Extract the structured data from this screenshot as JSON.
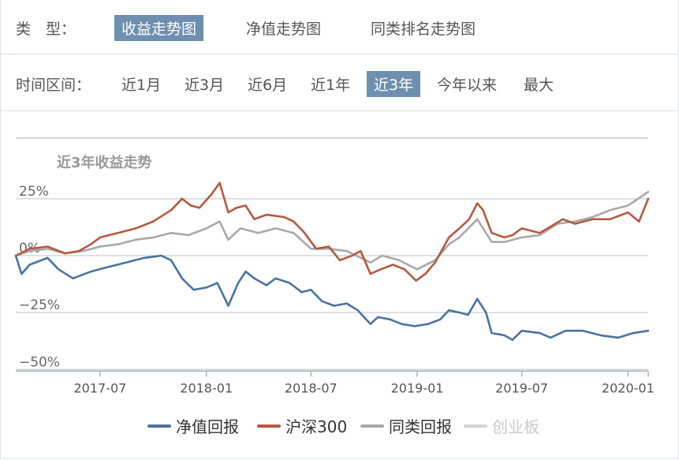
{
  "type_row": {
    "label": "类　型：",
    "options": [
      "收益走势图",
      "净值走势图",
      "同类排名走势图"
    ],
    "active": 0
  },
  "range_row": {
    "label": "时间区间：",
    "options": [
      "近1月",
      "近3月",
      "近6月",
      "近1年",
      "近3年",
      "今年以来",
      "最大"
    ],
    "active": 4
  },
  "chart_data": {
    "type": "line",
    "title": "近3年收益走势",
    "xlabel": "",
    "ylabel": "",
    "x_range": [
      "2017-02-05",
      "2020-02-05"
    ],
    "x_ticks": [
      {
        "date": "2017-07-01",
        "label": "2017-07"
      },
      {
        "date": "2018-01-01",
        "label": "2018-01"
      },
      {
        "date": "2018-07-01",
        "label": "2018-07"
      },
      {
        "date": "2019-01-01",
        "label": "2019-01"
      },
      {
        "date": "2019-07-01",
        "label": "2019-07"
      },
      {
        "date": "2020-01-01",
        "label": "2020-01"
      }
    ],
    "y_ticks": [
      {
        "value": 25,
        "label": "25%"
      },
      {
        "value": 0,
        "label": "0%"
      },
      {
        "value": -25,
        "label": "−25%"
      },
      {
        "value": -50,
        "label": "−50%"
      }
    ],
    "ylim": [
      -50,
      35
    ],
    "grid": true,
    "legend_position": "bottom",
    "series": [
      {
        "name": "净值回报",
        "color": "#4a72a0",
        "visible": true,
        "points": [
          [
            "2017-02-05",
            0
          ],
          [
            "2017-02-15",
            -8
          ],
          [
            "2017-03-01",
            -4
          ],
          [
            "2017-04-01",
            -1
          ],
          [
            "2017-04-20",
            -6
          ],
          [
            "2017-05-15",
            -10
          ],
          [
            "2017-06-15",
            -7
          ],
          [
            "2017-07-15",
            -5
          ],
          [
            "2017-08-15",
            -3
          ],
          [
            "2017-09-15",
            -1
          ],
          [
            "2017-10-15",
            0
          ],
          [
            "2017-11-01",
            -2
          ],
          [
            "2017-11-20",
            -10
          ],
          [
            "2017-12-10",
            -15
          ],
          [
            "2018-01-01",
            -14
          ],
          [
            "2018-01-20",
            -12
          ],
          [
            "2018-02-08",
            -22
          ],
          [
            "2018-02-25",
            -12
          ],
          [
            "2018-03-10",
            -7
          ],
          [
            "2018-03-25",
            -10
          ],
          [
            "2018-04-15",
            -13
          ],
          [
            "2018-05-01",
            -10
          ],
          [
            "2018-05-25",
            -12
          ],
          [
            "2018-06-15",
            -16
          ],
          [
            "2018-07-01",
            -15
          ],
          [
            "2018-07-20",
            -20
          ],
          [
            "2018-08-10",
            -22
          ],
          [
            "2018-09-01",
            -21
          ],
          [
            "2018-09-20",
            -24
          ],
          [
            "2018-10-12",
            -30
          ],
          [
            "2018-10-25",
            -27
          ],
          [
            "2018-11-15",
            -28
          ],
          [
            "2018-12-05",
            -30
          ],
          [
            "2018-12-28",
            -31
          ],
          [
            "2019-01-20",
            -30
          ],
          [
            "2019-02-10",
            -28
          ],
          [
            "2019-02-25",
            -24
          ],
          [
            "2019-03-15",
            -25
          ],
          [
            "2019-03-30",
            -26
          ],
          [
            "2019-04-15",
            -19
          ],
          [
            "2019-04-30",
            -25
          ],
          [
            "2019-05-10",
            -34
          ],
          [
            "2019-06-01",
            -35
          ],
          [
            "2019-06-15",
            -37
          ],
          [
            "2019-07-01",
            -33
          ],
          [
            "2019-08-01",
            -34
          ],
          [
            "2019-08-20",
            -36
          ],
          [
            "2019-09-15",
            -33
          ],
          [
            "2019-10-15",
            -33
          ],
          [
            "2019-11-15",
            -35
          ],
          [
            "2019-12-15",
            -36
          ],
          [
            "2020-01-10",
            -34
          ],
          [
            "2020-02-05",
            -33
          ]
        ]
      },
      {
        "name": "沪深300",
        "color": "#b5593f",
        "visible": true,
        "points": [
          [
            "2017-02-05",
            0
          ],
          [
            "2017-03-01",
            3
          ],
          [
            "2017-04-01",
            4
          ],
          [
            "2017-05-01",
            1
          ],
          [
            "2017-05-25",
            2
          ],
          [
            "2017-06-15",
            5
          ],
          [
            "2017-07-01",
            8
          ],
          [
            "2017-08-01",
            10
          ],
          [
            "2017-09-01",
            12
          ],
          [
            "2017-10-01",
            15
          ],
          [
            "2017-11-01",
            20
          ],
          [
            "2017-11-20",
            25
          ],
          [
            "2017-12-05",
            22
          ],
          [
            "2017-12-20",
            21
          ],
          [
            "2018-01-10",
            27
          ],
          [
            "2018-01-24",
            32
          ],
          [
            "2018-02-08",
            19
          ],
          [
            "2018-02-22",
            21
          ],
          [
            "2018-03-10",
            22
          ],
          [
            "2018-03-25",
            16
          ],
          [
            "2018-04-15",
            18
          ],
          [
            "2018-05-15",
            17
          ],
          [
            "2018-06-01",
            15
          ],
          [
            "2018-06-20",
            10
          ],
          [
            "2018-07-10",
            3
          ],
          [
            "2018-08-01",
            4
          ],
          [
            "2018-08-20",
            -2
          ],
          [
            "2018-09-10",
            0
          ],
          [
            "2018-09-25",
            2
          ],
          [
            "2018-10-12",
            -8
          ],
          [
            "2018-10-30",
            -6
          ],
          [
            "2018-11-20",
            -4
          ],
          [
            "2018-12-10",
            -6
          ],
          [
            "2018-12-30",
            -11
          ],
          [
            "2019-01-15",
            -8
          ],
          [
            "2019-02-01",
            -3
          ],
          [
            "2019-02-25",
            8
          ],
          [
            "2019-03-15",
            12
          ],
          [
            "2019-04-01",
            16
          ],
          [
            "2019-04-15",
            23
          ],
          [
            "2019-04-25",
            20
          ],
          [
            "2019-05-10",
            10
          ],
          [
            "2019-06-01",
            8
          ],
          [
            "2019-06-15",
            9
          ],
          [
            "2019-07-01",
            12
          ],
          [
            "2019-08-01",
            10
          ],
          [
            "2019-08-15",
            12
          ],
          [
            "2019-09-10",
            16
          ],
          [
            "2019-10-01",
            14
          ],
          [
            "2019-11-01",
            16
          ],
          [
            "2019-12-01",
            16
          ],
          [
            "2020-01-01",
            19
          ],
          [
            "2020-01-20",
            15
          ],
          [
            "2020-02-05",
            25
          ]
        ]
      },
      {
        "name": "同类回报",
        "color": "#a9a9a9",
        "visible": true,
        "points": [
          [
            "2017-02-05",
            0
          ],
          [
            "2017-03-01",
            2
          ],
          [
            "2017-04-01",
            3
          ],
          [
            "2017-05-01",
            1
          ],
          [
            "2017-06-01",
            2
          ],
          [
            "2017-07-01",
            4
          ],
          [
            "2017-08-01",
            5
          ],
          [
            "2017-09-01",
            7
          ],
          [
            "2017-10-01",
            8
          ],
          [
            "2017-11-01",
            10
          ],
          [
            "2017-12-01",
            9
          ],
          [
            "2018-01-01",
            12
          ],
          [
            "2018-01-24",
            15
          ],
          [
            "2018-02-08",
            7
          ],
          [
            "2018-03-01",
            12
          ],
          [
            "2018-04-01",
            10
          ],
          [
            "2018-05-01",
            12
          ],
          [
            "2018-06-01",
            10
          ],
          [
            "2018-07-01",
            3
          ],
          [
            "2018-08-01",
            3
          ],
          [
            "2018-09-01",
            2
          ],
          [
            "2018-10-12",
            -3
          ],
          [
            "2018-11-01",
            0
          ],
          [
            "2018-12-01",
            -2
          ],
          [
            "2019-01-01",
            -6
          ],
          [
            "2019-02-01",
            -2
          ],
          [
            "2019-02-25",
            5
          ],
          [
            "2019-03-15",
            8
          ],
          [
            "2019-04-15",
            16
          ],
          [
            "2019-05-10",
            6
          ],
          [
            "2019-06-01",
            6
          ],
          [
            "2019-07-01",
            8
          ],
          [
            "2019-08-01",
            9
          ],
          [
            "2019-09-01",
            14
          ],
          [
            "2019-10-01",
            15
          ],
          [
            "2019-11-01",
            17
          ],
          [
            "2019-12-01",
            20
          ],
          [
            "2020-01-01",
            22
          ],
          [
            "2020-02-05",
            28
          ]
        ]
      },
      {
        "name": "创业板",
        "color": "#d4d4d4",
        "visible": false,
        "points": []
      }
    ]
  }
}
